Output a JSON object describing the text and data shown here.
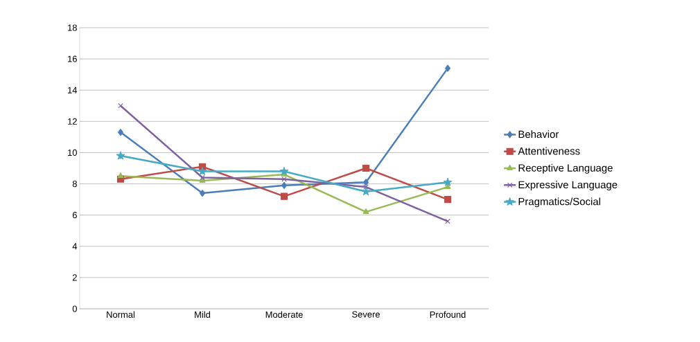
{
  "chart_data": {
    "type": "line",
    "categories": [
      "Normal",
      "Mild",
      "Moderate",
      "Severe",
      "Profound"
    ],
    "series": [
      {
        "name": "Behavior",
        "color": "#4a7ebb",
        "marker": "diamond",
        "values": [
          11.3,
          7.4,
          7.9,
          8.1,
          15.4
        ]
      },
      {
        "name": "Attentiveness",
        "color": "#be4b48",
        "marker": "square",
        "values": [
          8.3,
          9.1,
          7.2,
          9.0,
          7.0
        ]
      },
      {
        "name": "Receptive Language",
        "color": "#98b954",
        "marker": "triangle",
        "values": [
          8.5,
          8.2,
          8.6,
          6.2,
          7.8
        ]
      },
      {
        "name": "Expressive Language",
        "color": "#7d60a0",
        "marker": "cross",
        "values": [
          13.0,
          8.4,
          8.3,
          7.8,
          5.6
        ]
      },
      {
        "name": "Pragmatics/Social",
        "color": "#46aac5",
        "marker": "star",
        "values": [
          9.8,
          8.8,
          8.8,
          7.5,
          8.1
        ]
      }
    ],
    "ylim": [
      0,
      18
    ],
    "yticks": [
      0,
      2,
      4,
      6,
      8,
      10,
      12,
      14,
      16,
      18
    ],
    "grid": "y",
    "legend": "right",
    "line_style": "solid"
  }
}
